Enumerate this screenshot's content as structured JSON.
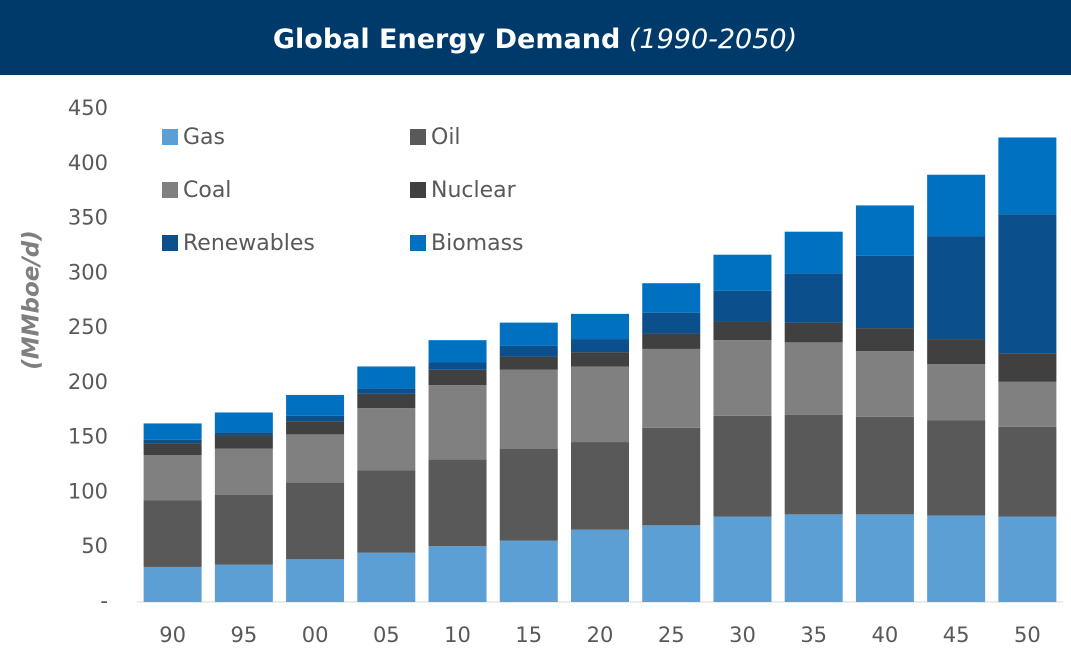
{
  "chart_data": {
    "type": "stacked_bar",
    "title": "Global Energy Demand",
    "subtitle": "(1990-2050)",
    "y_label": "(MMboe/d)",
    "categories": [
      "90",
      "95",
      "00",
      "05",
      "10",
      "15",
      "20",
      "25",
      "30",
      "35",
      "40",
      "45",
      "50"
    ],
    "series": [
      {
        "name": "Gas",
        "color": "#5b9fd4",
        "values": [
          32,
          34,
          39,
          45,
          51,
          56,
          66,
          70,
          78,
          80,
          80,
          79,
          78
        ]
      },
      {
        "name": "Oil",
        "color": "#595959",
        "values": [
          61,
          64,
          70,
          75,
          79,
          84,
          80,
          89,
          92,
          91,
          89,
          87,
          82
        ]
      },
      {
        "name": "Coal",
        "color": "#808080",
        "values": [
          41,
          42,
          44,
          57,
          68,
          72,
          69,
          72,
          69,
          66,
          60,
          51,
          41
        ]
      },
      {
        "name": "Nuclear",
        "color": "#404040",
        "values": [
          11,
          12,
          12,
          13,
          14,
          12,
          13,
          14,
          17,
          18,
          21,
          23,
          26
        ]
      },
      {
        "name": "Renewables",
        "color": "#0b508c",
        "values": [
          3,
          3,
          5,
          5,
          7,
          10,
          12,
          19,
          28,
          45,
          66,
          94,
          127
        ]
      },
      {
        "name": "Biomass",
        "color": "#0071c1",
        "values": [
          15,
          18,
          19,
          20,
          20,
          21,
          23,
          27,
          33,
          38,
          46,
          56,
          70
        ]
      }
    ],
    "ylim": [
      0,
      450
    ],
    "yticks": [
      {
        "value": 0,
        "label": "-"
      },
      50,
      100,
      150,
      200,
      250,
      300,
      350,
      400,
      450
    ],
    "legend": "top-left"
  }
}
